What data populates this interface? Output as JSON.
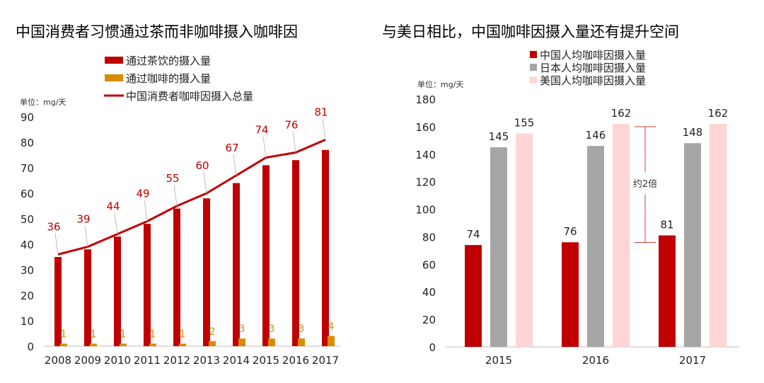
{
  "chart_data": [
    {
      "type": "bar",
      "title": "中国消费者习惯通过茶而非咖啡摄入咖啡因",
      "unit_label": "单位：mg/天",
      "categories": [
        "2008",
        "2009",
        "2010",
        "2011",
        "2012",
        "2013",
        "2014",
        "2015",
        "2016",
        "2017"
      ],
      "ylim": [
        0,
        90
      ],
      "yticks": [
        0,
        10,
        20,
        30,
        40,
        50,
        60,
        70,
        80,
        90
      ],
      "grid": false,
      "legend_placement": "top",
      "series": [
        {
          "name": "通过茶饮的摄入量",
          "type": "bar",
          "color": "#c00000",
          "values": [
            35,
            38,
            43,
            48,
            54,
            58,
            64,
            71,
            73,
            77
          ]
        },
        {
          "name": "通过咖啡的摄入量",
          "type": "bar",
          "color": "#d98c00",
          "values": [
            1,
            1,
            1,
            1,
            1,
            2,
            3,
            3,
            3,
            4
          ],
          "labels": [
            "1",
            "1",
            "1",
            "1",
            "1",
            "2",
            "3",
            "3",
            "3",
            "4"
          ]
        },
        {
          "name": "中国消费者咖啡因摄入总量",
          "type": "line",
          "color": "#c00000",
          "values": [
            36,
            39,
            44,
            49,
            55,
            60,
            67,
            74,
            76,
            81
          ],
          "labels": [
            "36",
            "39",
            "44",
            "49",
            "55",
            "60",
            "67",
            "74",
            "76",
            "81"
          ]
        }
      ]
    },
    {
      "type": "bar",
      "title": "与美日相比，中国咖啡因摄入量还有提升空间",
      "unit_label": "单位：mg/天",
      "categories": [
        "2015",
        "2016",
        "2017"
      ],
      "ylim": [
        0,
        180
      ],
      "yticks": [
        0,
        20,
        40,
        60,
        80,
        100,
        120,
        140,
        160,
        180
      ],
      "grid": false,
      "legend_placement": "top",
      "series": [
        {
          "name": "中国人均咖啡因摄入量",
          "color": "#c00000",
          "values": [
            74,
            76,
            81
          ],
          "labels": [
            "74",
            "76",
            "81"
          ]
        },
        {
          "name": "日本人均咖啡因摄入量",
          "color": "#a6a6a6",
          "values": [
            145,
            146,
            148
          ],
          "labels": [
            "145",
            "146",
            "148"
          ]
        },
        {
          "name": "美国人均咖啡因摄入量",
          "color": "#ffd5d5",
          "values": [
            155,
            162,
            162
          ],
          "labels": [
            "155",
            "162",
            "162"
          ]
        }
      ],
      "annotation": {
        "text": "约2倍",
        "from": 81,
        "to": 162,
        "color": "#d43a3a"
      }
    }
  ]
}
